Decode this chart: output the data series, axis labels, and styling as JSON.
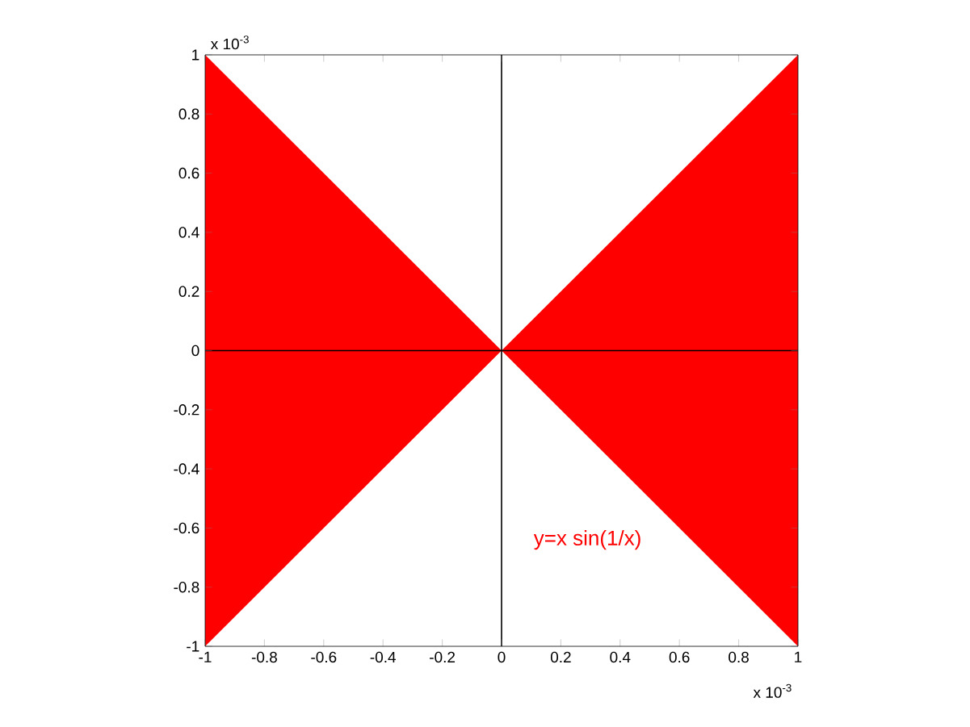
{
  "chart_data": {
    "type": "area",
    "xlim": [
      -1,
      1
    ],
    "ylim": [
      -1,
      1
    ],
    "xticks": [
      -1,
      -0.8,
      -0.6,
      -0.4,
      -0.2,
      0,
      0.2,
      0.4,
      0.6,
      0.8,
      1
    ],
    "yticks": [
      -1,
      -0.8,
      -0.6,
      -0.4,
      -0.2,
      0,
      0.2,
      0.4,
      0.6,
      0.8,
      1
    ],
    "series": [
      {
        "name": "y=x sin(1/x)",
        "color": "#ff0000",
        "x": [
          -1,
          0,
          1
        ],
        "values": [
          1,
          0,
          1
        ]
      },
      {
        "color": "#ff0000",
        "x": [
          -1,
          0,
          1
        ],
        "values": [
          -1,
          0,
          -1
        ]
      },
      {
        "type": "line",
        "color": "#000000",
        "x": [
          0,
          0
        ],
        "values": [
          -1,
          1
        ]
      },
      {
        "type": "line",
        "color": "#000000",
        "x": [
          -1,
          1
        ],
        "values": [
          0,
          0
        ]
      }
    ],
    "annotations": [
      "x 10$^{-3}$",
      "x 10$^{-3}$"
    ]
  }
}
